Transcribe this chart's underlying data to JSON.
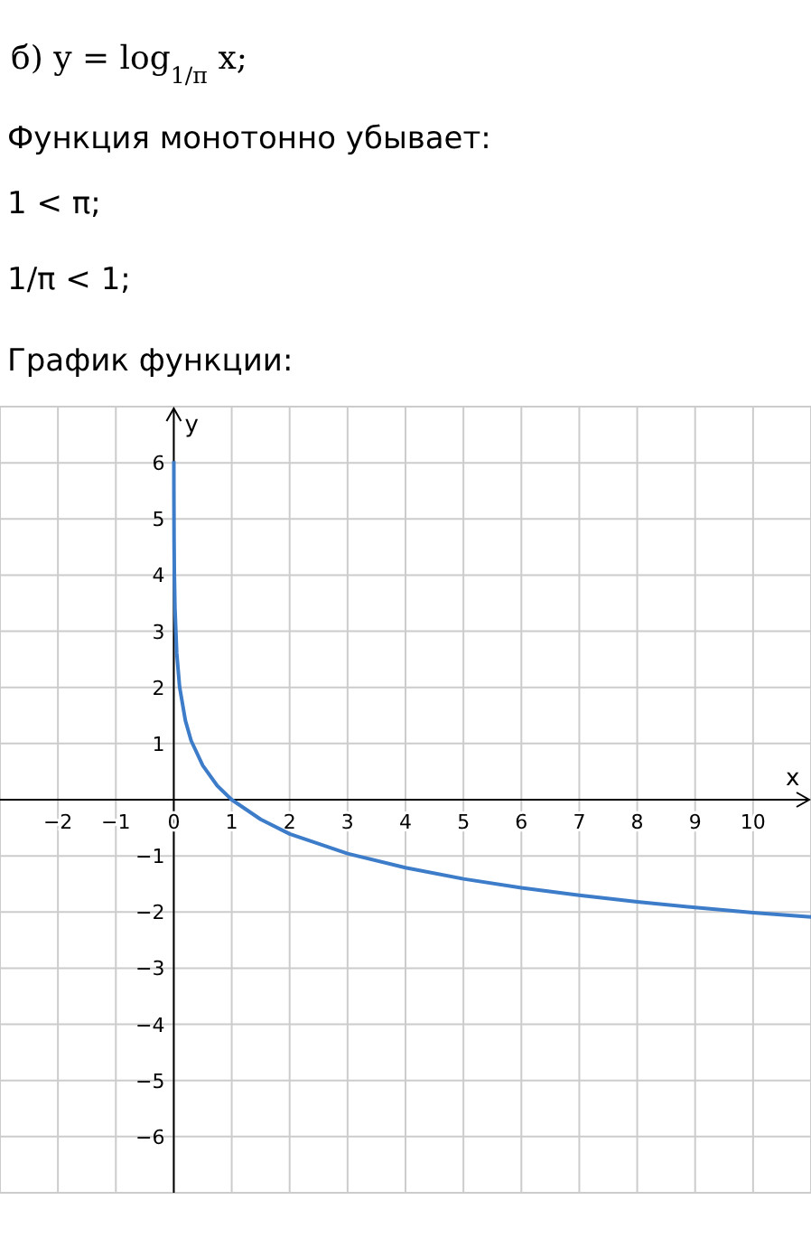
{
  "chart_data": {
    "type": "line",
    "title": "б) y = log$_{1/π}$ x;",
    "annotations": [
      "Функция монотонно убывает:",
      "1 < π;",
      "1/π < 1;",
      "График функции:"
    ],
    "xlabel": "x",
    "ylabel": "y",
    "x": [
      0.001,
      0.002,
      0.005,
      0.01,
      0.02,
      0.05,
      0.1,
      0.2,
      0.3,
      0.5,
      0.75,
      1,
      1.5,
      2,
      3,
      4,
      5,
      6,
      7,
      8,
      9,
      10,
      11
    ],
    "series": [
      {
        "color": "#3d7cc9",
        "values": [
          6.03,
          5.43,
          4.63,
          4.02,
          3.42,
          2.62,
          2.01,
          1.41,
          1.05,
          0.61,
          0.25,
          0,
          -0.35,
          -0.61,
          -0.96,
          -1.21,
          -1.41,
          -1.57,
          -1.7,
          -1.82,
          -1.92,
          -2.01,
          -2.09
        ]
      }
    ],
    "xlim": [
      -3,
      11
    ],
    "ylim": [
      -7,
      7
    ],
    "xticks": [
      -2,
      -1,
      0,
      1,
      2,
      3,
      4,
      5,
      6,
      7,
      8,
      9,
      10
    ],
    "yticks": [
      -6,
      -5,
      -4,
      -3,
      -2,
      -1,
      1,
      2,
      3,
      4,
      5,
      6
    ],
    "grid": true,
    "marker": "none",
    "line_style": "solid"
  }
}
